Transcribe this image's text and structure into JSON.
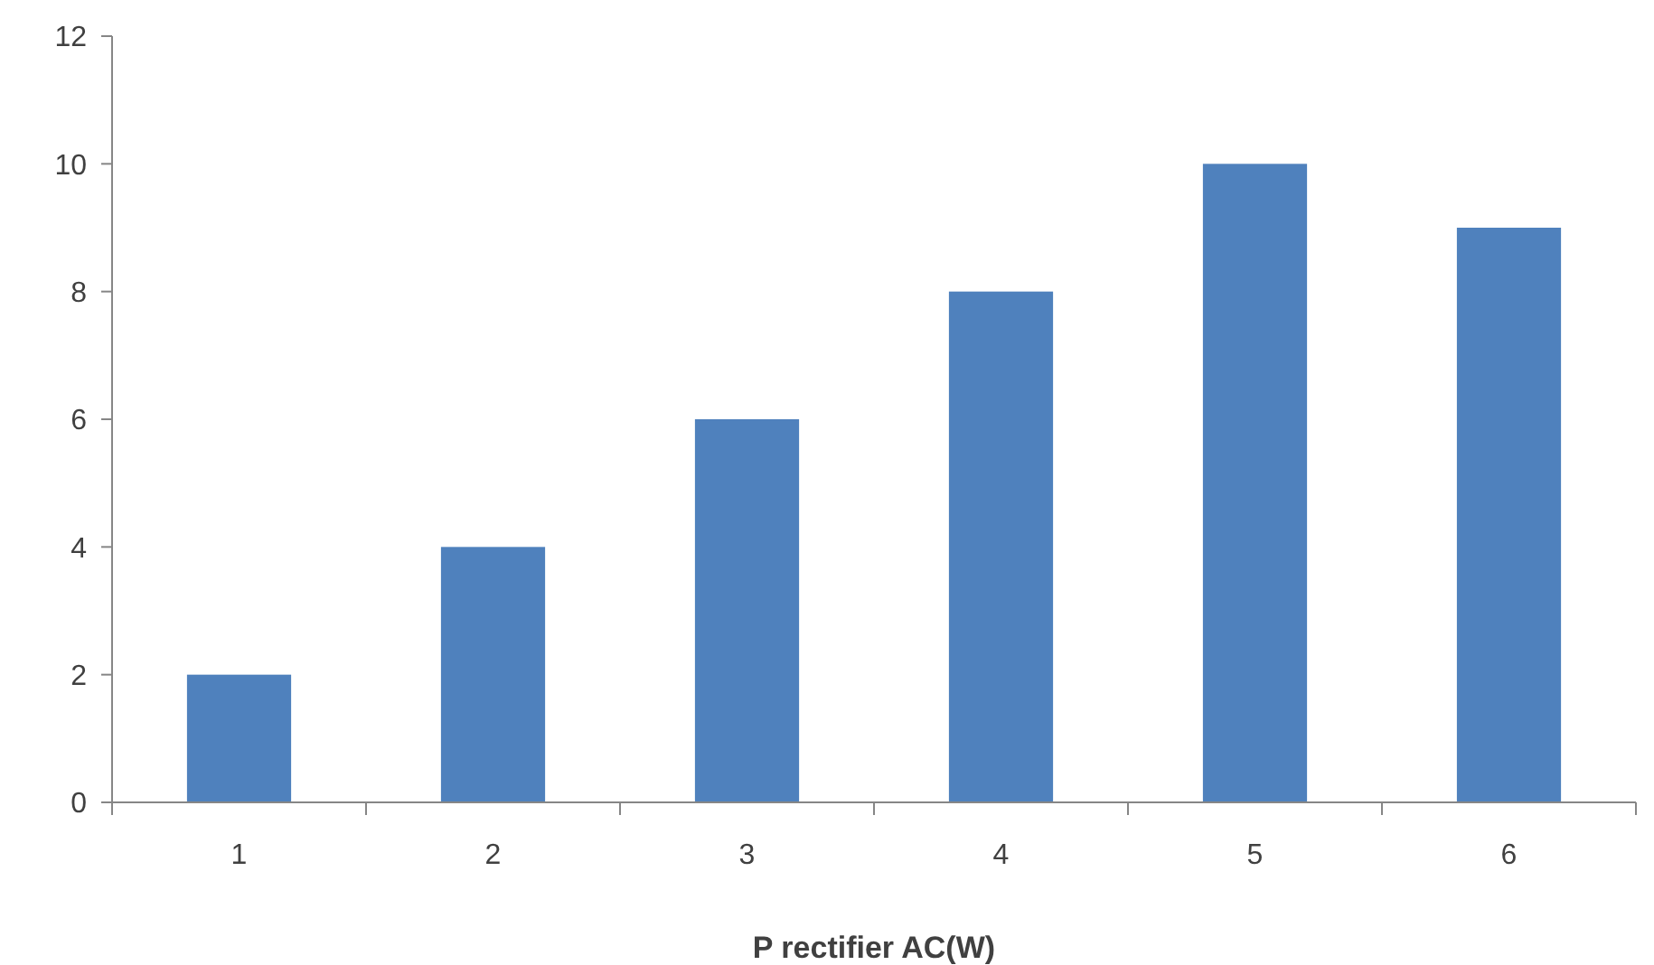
{
  "chart_data": {
    "type": "bar",
    "xlabel": "P rectifier AC(W)",
    "categories": [
      "1",
      "2",
      "3",
      "4",
      "5",
      "6"
    ],
    "values": [
      2,
      4,
      6,
      8,
      10,
      9
    ],
    "color": "#4f81bd",
    "ylim": [
      0,
      12
    ],
    "yticks": [
      0,
      2,
      4,
      6,
      8,
      10,
      12
    ]
  }
}
